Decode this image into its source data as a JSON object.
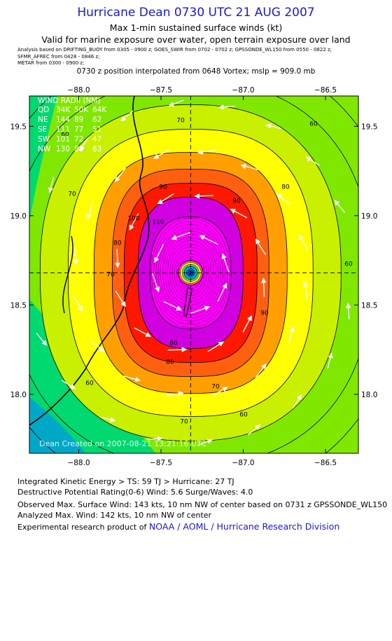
{
  "header": {
    "title": "Hurricane Dean 0730 UTC 21 AUG 2007",
    "line1": "Max 1-min sustained surface winds (kt)",
    "line2": "Valid for marine exposure over water, open terrain exposure over land",
    "analysis_lines": [
      "Analysis based on   DRIFTING_BUOY from 0305 - 0900 z;   GOES_SWIR from 0702 - 0702 z;   GPSSONDE_WL150 from 0550 - 0822 z;",
      "SFMR_AFREC from 0428 - 0846 z;",
      "METAR from 0300 - 0900 z;"
    ],
    "position_note": "0730 z position interpolated from 0648 Vortex; mslp = 909.0 mb"
  },
  "wind_radii": {
    "title": "WIND RADII (NM)",
    "header": [
      "QD",
      "34K",
      "50K",
      "64K"
    ],
    "rows": [
      [
        "NE",
        "144",
        "89",
        "62"
      ],
      [
        "SE",
        "111",
        "77",
        "51"
      ],
      [
        "SW",
        "101",
        "72",
        "47"
      ],
      [
        "NW",
        "130",
        "88",
        "63"
      ]
    ]
  },
  "watermark": "Dean    Created on 2007-08-21  13:21:16 UTC",
  "footer": {
    "ike": "Integrated Kinetic Energy > TS: 59 TJ   > Hurricane: 27 TJ",
    "destructive": "Destructive Potential Rating(0-6)   Wind: 5.6 Surge/Waves: 4.0",
    "observed": "Observed Max. Surface Wind: 143 kts, 10 nm NW of center based on 0731 z GPSSONDE_WL150",
    "analyzed": "Analyzed Max. Wind: 142 kts, 10 nm NW of center",
    "experimental_prefix": "Experimental research product of",
    "experimental_link": "NOAA / AOML / Hurricane Research Division"
  },
  "chart_data": {
    "type": "contour",
    "variable": "Max 1-min sustained surface winds (kt)",
    "x_ticks": [
      -88.0,
      -87.5,
      -87.0,
      -86.5
    ],
    "y_ticks": [
      18.0,
      18.5,
      19.0,
      19.5
    ],
    "x_tick_labels": [
      "−88.0",
      "−87.5",
      "−87.0",
      "−86.5"
    ],
    "y_tick_labels": [
      "18.0",
      "18.5",
      "19.0",
      "19.5"
    ],
    "xlim": [
      -88.3,
      -86.3
    ],
    "ylim": [
      17.67,
      19.67
    ],
    "center": {
      "lon": -87.32,
      "lat": 18.68
    },
    "contour_levels": [
      50,
      60,
      70,
      80,
      90,
      100,
      110
    ],
    "contour_labels_shown": [
      60,
      60,
      60,
      60,
      60,
      60,
      70,
      70,
      70,
      70,
      70,
      80,
      80,
      80,
      80,
      90,
      90,
      90,
      100,
      110
    ],
    "max_wind_kt": 142,
    "grid": true,
    "colors": {
      "band_0": "#00a8c8",
      "band_40": "#00d870",
      "band_50": "#80e800",
      "band_60": "#c8f000",
      "band_70": "#ffff00",
      "band_80": "#ffa000",
      "band_90": "#ff6010",
      "band_100": "#ff1800",
      "band_110": "#d000e0",
      "band_130": "#ff00ff",
      "title": "#1a1acc",
      "land_outline": "#000000",
      "vectors": "#ffffff"
    }
  }
}
